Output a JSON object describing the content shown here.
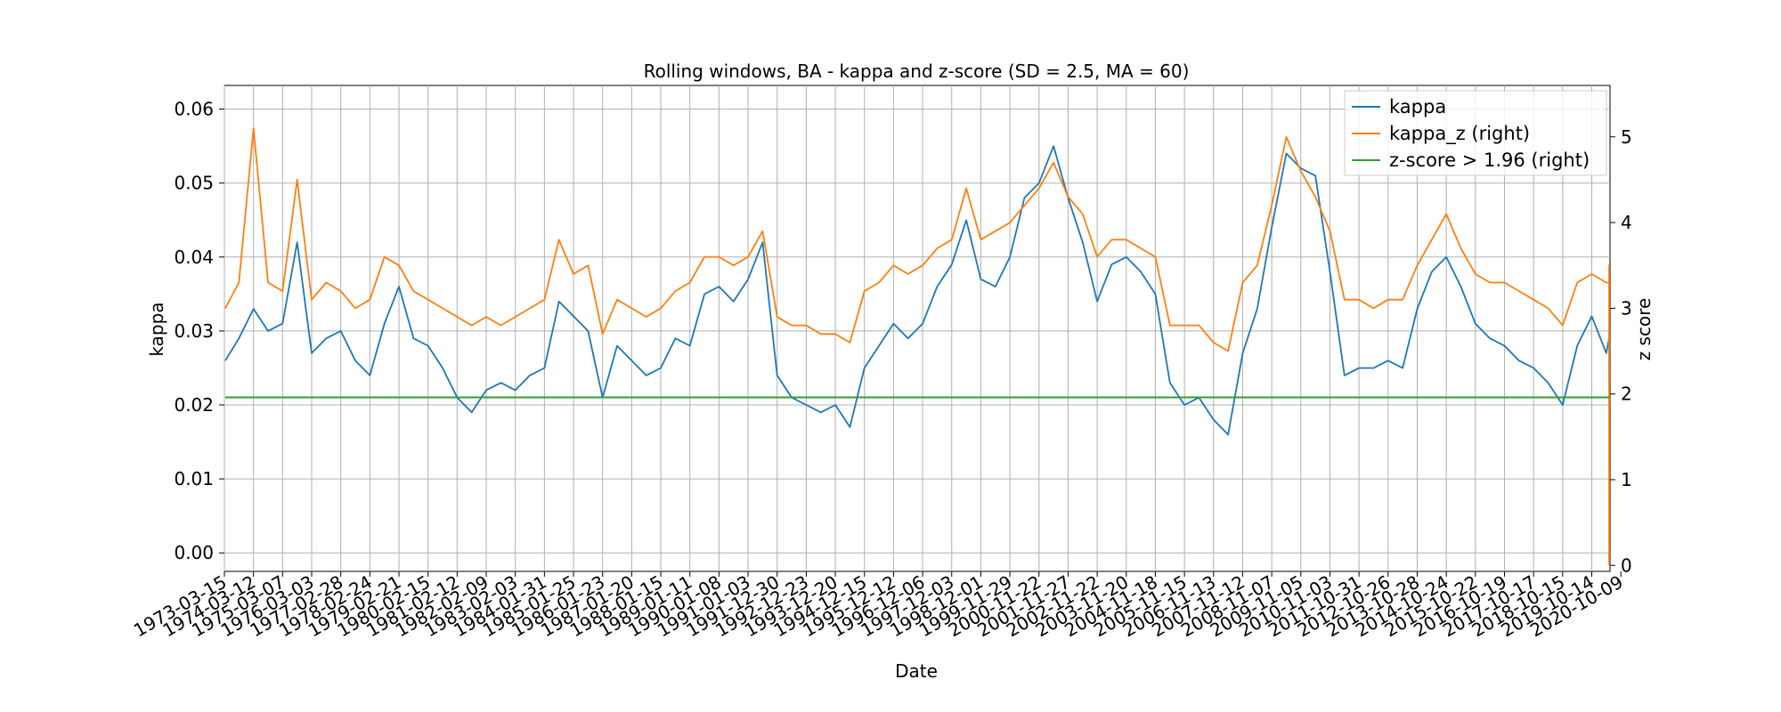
{
  "chart_data": {
    "type": "line",
    "title": "Rolling windows, BA - kappa and z-score (SD = 2.5, MA = 60)",
    "xlabel": "Date",
    "ylabel": "kappa",
    "ylabel_right": "z score",
    "ylim": [
      -0.0025,
      0.0632
    ],
    "ylim_right": [
      -0.07,
      5.6
    ],
    "y_ticks": [
      "0.00",
      "0.01",
      "0.02",
      "0.03",
      "0.04",
      "0.05",
      "0.06"
    ],
    "y_ticks_right": [
      "0",
      "1",
      "2",
      "3",
      "4",
      "5"
    ],
    "x_ticks": [
      "1973-03-15",
      "1974-03-12",
      "1975-03-07",
      "1976-03-03",
      "1977-02-28",
      "1978-02-24",
      "1979-02-21",
      "1980-02-15",
      "1981-02-12",
      "1982-02-09",
      "1983-02-03",
      "1984-01-31",
      "1985-01-25",
      "1986-01-23",
      "1987-01-20",
      "1988-01-15",
      "1989-01-11",
      "1990-01-08",
      "1991-01-03",
      "1991-12-30",
      "1992-12-23",
      "1993-12-20",
      "1994-12-15",
      "1995-12-12",
      "1996-12-06",
      "1997-12-03",
      "1998-12-01",
      "1999-11-29",
      "2000-11-22",
      "2001-11-27",
      "2002-11-22",
      "2003-11-20",
      "2004-11-18",
      "2005-11-15",
      "2006-11-13",
      "2007-11-12",
      "2008-11-07",
      "2009-11-05",
      "2010-11-03",
      "2011-10-31",
      "2012-10-26",
      "2013-10-28",
      "2014-10-24",
      "2015-10-22",
      "2016-10-19",
      "2017-10-17",
      "2018-10-15",
      "2019-10-14",
      "2020-10-09"
    ],
    "grid": true,
    "legend_position": "top-right",
    "series": [
      {
        "name": "kappa",
        "axis": "left",
        "color": "#1f77b4",
        "x": [
          0,
          0.5,
          1,
          1.5,
          2,
          2.5,
          3,
          3.5,
          4,
          4.5,
          5,
          5.5,
          6,
          6.5,
          7,
          7.5,
          8,
          8.5,
          9,
          9.5,
          10,
          10.5,
          11,
          11.5,
          12,
          12.5,
          13,
          13.5,
          14,
          14.5,
          15,
          15.5,
          16,
          16.5,
          17,
          17.5,
          18,
          18.5,
          19,
          19.5,
          20,
          20.5,
          21,
          21.5,
          22,
          22.5,
          23,
          23.5,
          24,
          24.5,
          25,
          25.5,
          26,
          26.5,
          27,
          27.5,
          28,
          28.5,
          29,
          29.5,
          30,
          30.5,
          31,
          31.5,
          32,
          32.5,
          33,
          33.5,
          34,
          34.5,
          35,
          35.5,
          36,
          36.5,
          37,
          37.5,
          38,
          38.5,
          39,
          39.5,
          40,
          40.5,
          41,
          41.5,
          42,
          42.5,
          43,
          43.5,
          44,
          44.5,
          45,
          45.5,
          46,
          46.5,
          47,
          47.5,
          48,
          48.5,
          49
        ],
        "y": [
          0.026,
          0.029,
          0.033,
          0.03,
          0.031,
          0.042,
          0.027,
          0.029,
          0.03,
          0.026,
          0.024,
          0.031,
          0.036,
          0.029,
          0.028,
          0.025,
          0.021,
          0.019,
          0.022,
          0.023,
          0.022,
          0.024,
          0.025,
          0.034,
          0.032,
          0.03,
          0.021,
          0.028,
          0.026,
          0.024,
          0.025,
          0.029,
          0.028,
          0.035,
          0.036,
          0.034,
          0.037,
          0.042,
          0.024,
          0.021,
          0.02,
          0.019,
          0.02,
          0.017,
          0.025,
          0.028,
          0.031,
          0.029,
          0.031,
          0.036,
          0.039,
          0.045,
          0.037,
          0.036,
          0.04,
          0.048,
          0.05,
          0.055,
          0.048,
          0.042,
          0.034,
          0.039,
          0.04,
          0.038,
          0.035,
          0.023,
          0.02,
          0.021,
          0.018,
          0.016,
          0.027,
          0.033,
          0.044,
          0.054,
          0.052,
          0.051,
          0.038,
          0.024,
          0.025,
          0.025,
          0.026,
          0.025,
          0.033,
          0.038,
          0.04,
          0.036,
          0.031,
          0.029,
          0.028,
          0.026,
          0.025,
          0.023,
          0.02,
          0.028,
          0.032,
          0.027,
          0.029,
          0.03,
          0.023
        ]
      },
      {
        "name": "kappa_z (right)",
        "axis": "right",
        "color": "#ff7f0e",
        "x": [
          0,
          0.5,
          1,
          1.5,
          2,
          2.5,
          3,
          3.5,
          4,
          4.5,
          5,
          5.5,
          6,
          6.5,
          7,
          7.5,
          8,
          8.5,
          9,
          9.5,
          10,
          10.5,
          11,
          11.5,
          12,
          12.5,
          13,
          13.5,
          14,
          14.5,
          15,
          15.5,
          16,
          16.5,
          17,
          17.5,
          18,
          18.5,
          19,
          19.5,
          20,
          20.5,
          21,
          21.5,
          22,
          22.5,
          23,
          23.5,
          24,
          24.5,
          25,
          25.5,
          26,
          26.5,
          27,
          27.5,
          28,
          28.5,
          29,
          29.5,
          30,
          30.5,
          31,
          31.5,
          32,
          32.5,
          33,
          33.5,
          34,
          34.5,
          35,
          35.5,
          36,
          36.5,
          37,
          37.5,
          38,
          38.5,
          39,
          39.5,
          40,
          40.5,
          41,
          41.5,
          42,
          42.5,
          43,
          43.5,
          44,
          44.5,
          45,
          45.5,
          46,
          46.5,
          47,
          47.5,
          48,
          48.5,
          49
        ],
        "y": [
          3.0,
          3.3,
          5.1,
          3.3,
          3.2,
          4.5,
          3.1,
          3.3,
          3.2,
          3.0,
          3.1,
          3.6,
          3.5,
          3.2,
          3.1,
          3.0,
          2.9,
          2.8,
          2.9,
          2.8,
          2.9,
          3.0,
          3.1,
          3.8,
          3.4,
          3.5,
          2.7,
          3.1,
          3.0,
          2.9,
          3.0,
          3.2,
          3.3,
          3.6,
          3.6,
          3.5,
          3.6,
          3.9,
          2.9,
          2.8,
          2.8,
          2.7,
          2.7,
          2.6,
          3.2,
          3.3,
          3.5,
          3.4,
          3.5,
          3.7,
          3.8,
          4.4,
          3.8,
          3.9,
          4.0,
          4.2,
          4.4,
          4.7,
          4.3,
          4.1,
          3.6,
          3.8,
          3.8,
          3.7,
          3.6,
          2.8,
          2.8,
          2.8,
          2.6,
          2.5,
          3.3,
          3.5,
          4.2,
          5.0,
          4.6,
          4.3,
          3.9,
          3.1,
          3.1,
          3.0,
          3.1,
          3.1,
          3.5,
          3.8,
          4.1,
          3.7,
          3.4,
          3.3,
          3.3,
          3.2,
          3.1,
          3.0,
          2.8,
          3.3,
          3.4,
          3.3,
          3.3,
          3.5,
          0.0
        ]
      },
      {
        "name": "z-score > 1.96 (right)",
        "axis": "right",
        "color": "#2ca02c",
        "x": [
          0,
          49
        ],
        "y": [
          1.96,
          1.96
        ]
      }
    ]
  }
}
